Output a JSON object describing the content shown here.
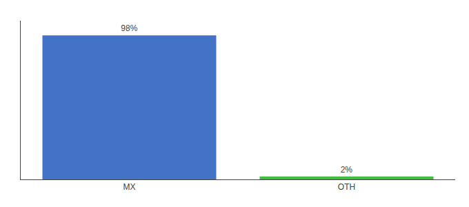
{
  "chart_data": {
    "type": "bar",
    "categories": [
      "MX",
      "OTH"
    ],
    "values": [
      98,
      2
    ],
    "value_labels": [
      "98%",
      "2%"
    ],
    "colors": [
      "#4472c4",
      "#3dbf3d"
    ],
    "ylim": [
      0,
      108
    ],
    "yticks": [],
    "data_labels": true,
    "tick_labels": "x",
    "grid": false
  }
}
